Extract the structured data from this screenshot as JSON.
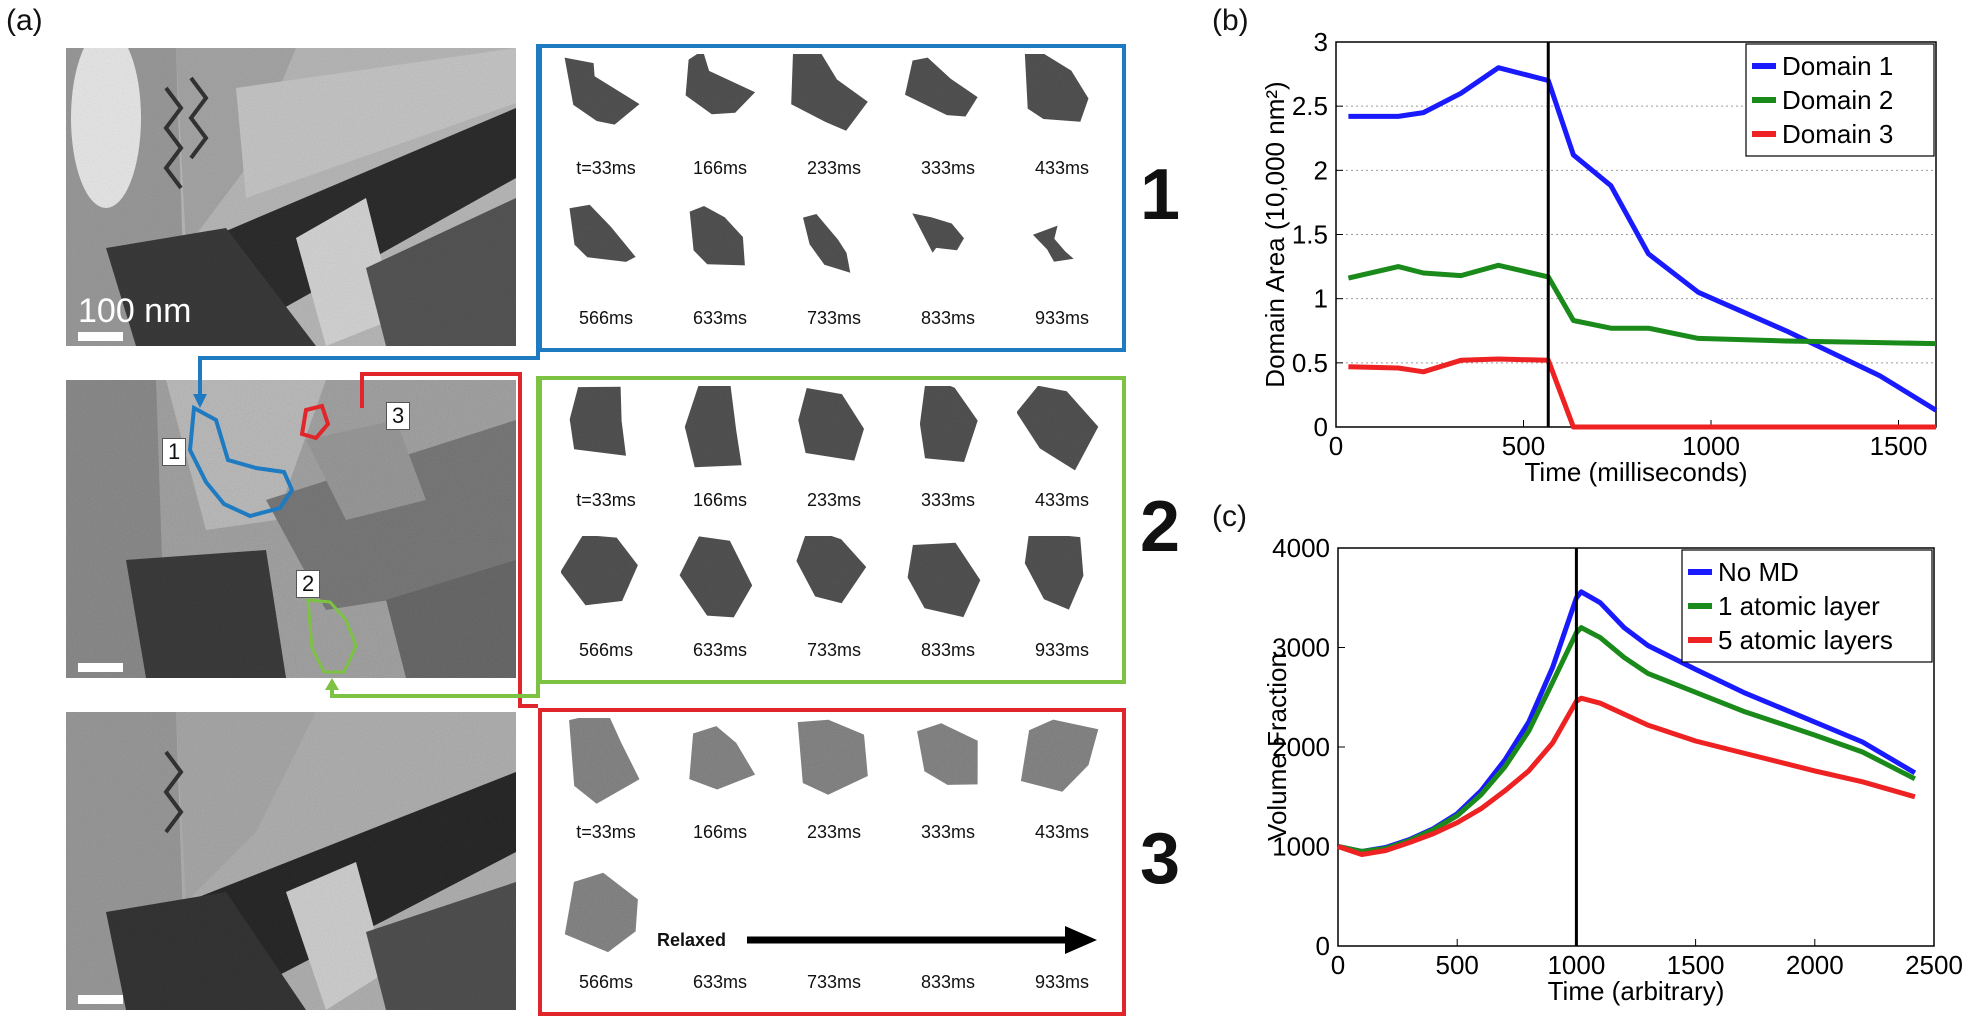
{
  "figure": {
    "panel_labels": {
      "a": "(a)",
      "b": "(b)",
      "c": "(c)"
    },
    "scale_bar_label": "100 nm",
    "domain_markers": [
      "1",
      "2",
      "3"
    ],
    "galleries": [
      {
        "number": "1",
        "color": "#1f7bc1",
        "times_row1": [
          "t=33ms",
          "166ms",
          "233ms",
          "333ms",
          "433ms"
        ],
        "times_row2": [
          "566ms",
          "633ms",
          "733ms",
          "833ms",
          "933ms"
        ]
      },
      {
        "number": "2",
        "color": "#7cc243",
        "times_row1": [
          "t=33ms",
          "166ms",
          "233ms",
          "333ms",
          "433ms"
        ],
        "times_row2": [
          "566ms",
          "633ms",
          "733ms",
          "833ms",
          "933ms"
        ]
      },
      {
        "number": "3",
        "color": "#e0262b",
        "times_row1": [
          "t=33ms",
          "166ms",
          "233ms",
          "333ms",
          "433ms"
        ],
        "times_row2": [
          "566ms",
          "633ms",
          "733ms",
          "833ms",
          "933ms"
        ],
        "relaxed_label": "Relaxed"
      }
    ]
  },
  "chart_data": [
    {
      "id": "b",
      "type": "line",
      "xlabel": "Time (milliseconds)",
      "ylabel": "Domain Area (10,000 nm²)",
      "xlim": [
        0,
        1600
      ],
      "ylim": [
        0,
        3
      ],
      "xticks": [
        0,
        500,
        1000,
        1500
      ],
      "yticks": [
        0,
        0.5,
        1,
        1.5,
        2,
        2.5,
        3
      ],
      "ytick_labels": [
        "0",
        "0.5",
        "1",
        "1.5",
        "2",
        "2.5",
        "3"
      ],
      "grid": "horizontal-dotted",
      "vline": 566,
      "legend_position": "top-right",
      "series": [
        {
          "name": "Domain 1",
          "color": "#1a1aff",
          "x": [
            33,
            166,
            233,
            333,
            433,
            566,
            633,
            733,
            833,
            966,
            1200,
            1450,
            1600
          ],
          "y": [
            2.42,
            2.42,
            2.45,
            2.6,
            2.8,
            2.7,
            2.12,
            1.88,
            1.35,
            1.05,
            0.75,
            0.4,
            0.13
          ]
        },
        {
          "name": "Domain 2",
          "color": "#1a8a1a",
          "x": [
            33,
            166,
            233,
            333,
            433,
            566,
            633,
            733,
            833,
            966,
            1200,
            1400,
            1600
          ],
          "y": [
            1.16,
            1.25,
            1.2,
            1.18,
            1.26,
            1.17,
            0.83,
            0.77,
            0.77,
            0.69,
            0.67,
            0.66,
            0.65
          ]
        },
        {
          "name": "Domain 3",
          "color": "#ee2222",
          "x": [
            33,
            166,
            233,
            333,
            433,
            566,
            633,
            733,
            1000,
            1600
          ],
          "y": [
            0.47,
            0.46,
            0.43,
            0.52,
            0.53,
            0.52,
            0,
            0,
            0,
            0
          ]
        }
      ]
    },
    {
      "id": "c",
      "type": "line",
      "xlabel": "Time (arbitrary)",
      "ylabel": "Volume Fraction",
      "xlim": [
        0,
        2500
      ],
      "ylim": [
        0,
        4000
      ],
      "xticks": [
        0,
        500,
        1000,
        1500,
        2000,
        2500
      ],
      "yticks": [
        0,
        1000,
        2000,
        3000,
        4000
      ],
      "ytick_labels": [
        "0",
        "1000",
        "2000",
        "3000",
        "4000"
      ],
      "grid": "none",
      "vline": 1000,
      "legend_position": "top-right",
      "series": [
        {
          "name": "No MD",
          "color": "#1a1aff",
          "x": [
            0,
            100,
            200,
            300,
            400,
            500,
            600,
            700,
            800,
            900,
            1000,
            1020,
            1100,
            1200,
            1300,
            1500,
            1700,
            2000,
            2200,
            2420
          ],
          "y": [
            1000,
            950,
            990,
            1070,
            1180,
            1330,
            1560,
            1870,
            2250,
            2800,
            3500,
            3560,
            3450,
            3200,
            3020,
            2780,
            2550,
            2250,
            2050,
            1740
          ]
        },
        {
          "name": "1 atomic layer",
          "color": "#1a8a1a",
          "x": [
            0,
            100,
            200,
            300,
            400,
            500,
            600,
            700,
            800,
            900,
            1000,
            1020,
            1100,
            1200,
            1300,
            1500,
            1700,
            2000,
            2200,
            2420
          ],
          "y": [
            1000,
            950,
            980,
            1060,
            1170,
            1310,
            1520,
            1800,
            2160,
            2650,
            3150,
            3200,
            3100,
            2900,
            2740,
            2550,
            2360,
            2120,
            1950,
            1680
          ]
        },
        {
          "name": "5 atomic layers",
          "color": "#ee2222",
          "x": [
            0,
            100,
            200,
            300,
            400,
            500,
            600,
            700,
            800,
            900,
            1000,
            1020,
            1100,
            1200,
            1300,
            1500,
            1700,
            2000,
            2200,
            2420
          ],
          "y": [
            1000,
            920,
            960,
            1040,
            1130,
            1240,
            1380,
            1560,
            1760,
            2040,
            2460,
            2490,
            2440,
            2330,
            2220,
            2060,
            1940,
            1760,
            1650,
            1500
          ]
        }
      ]
    }
  ]
}
